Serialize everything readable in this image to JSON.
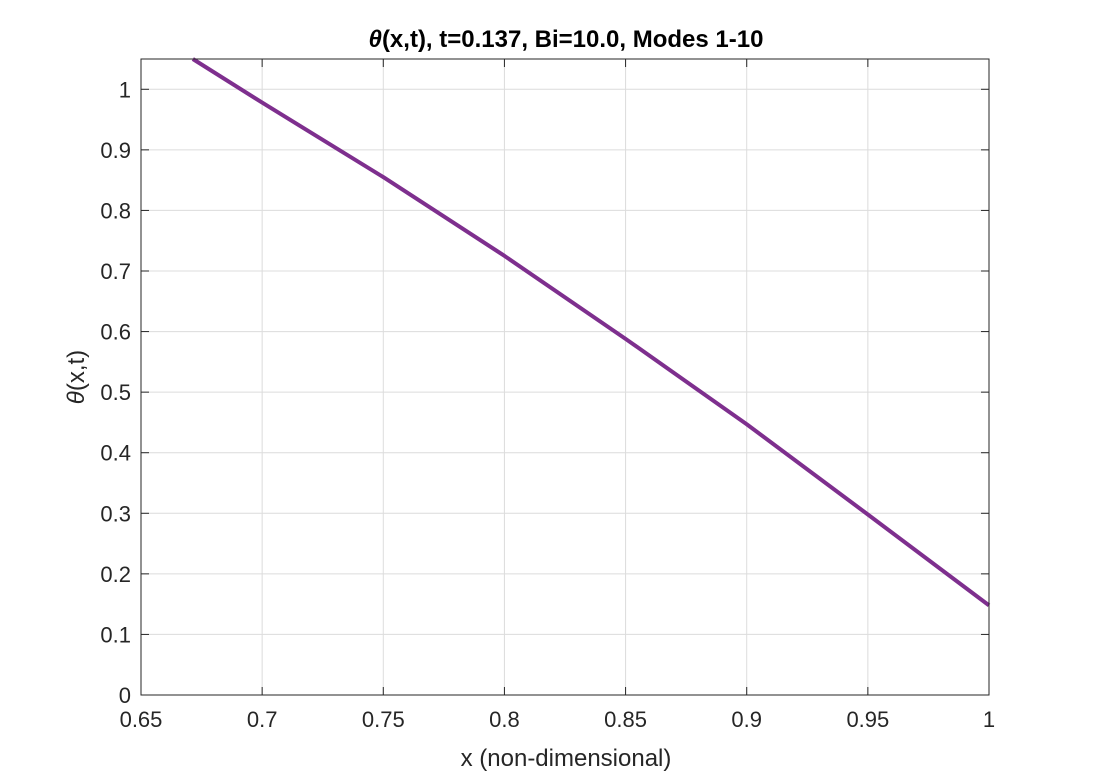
{
  "chart_data": {
    "type": "line",
    "title": "θ(x,t), t=0.137, Bi=10.0, Modes 1-10",
    "title_theta": "θ",
    "title_rest": "(x,t), t=0.137, Bi=10.0, Modes 1-10",
    "xlabel": "x (non-dimensional)",
    "ylabel": "θ(x,t)",
    "ylabel_theta": "θ",
    "ylabel_rest": "(x,t)",
    "xlim": [
      0.65,
      1.0
    ],
    "ylim": [
      0,
      1.05
    ],
    "grid": true,
    "legend": "none",
    "xticks": [
      0.65,
      0.7,
      0.75,
      0.8,
      0.85,
      0.9,
      0.95,
      1.0
    ],
    "xtick_labels": [
      "0.65",
      "0.7",
      "0.75",
      "0.8",
      "0.85",
      "0.9",
      "0.95",
      "1"
    ],
    "yticks": [
      0,
      0.1,
      0.2,
      0.3,
      0.4,
      0.5,
      0.6,
      0.7,
      0.8,
      0.9,
      1.0
    ],
    "ytick_labels": [
      "0",
      "0.1",
      "0.2",
      "0.3",
      "0.4",
      "0.5",
      "0.6",
      "0.7",
      "0.8",
      "0.9",
      "1"
    ],
    "series": [
      {
        "color": "#7E2F8E",
        "x": [
          0.6714,
          0.7,
          0.75,
          0.8,
          0.85,
          0.9,
          0.95,
          1.0
        ],
        "y": [
          1.05,
          0.978,
          0.855,
          0.725,
          0.588,
          0.447,
          0.298,
          0.148
        ]
      }
    ]
  }
}
